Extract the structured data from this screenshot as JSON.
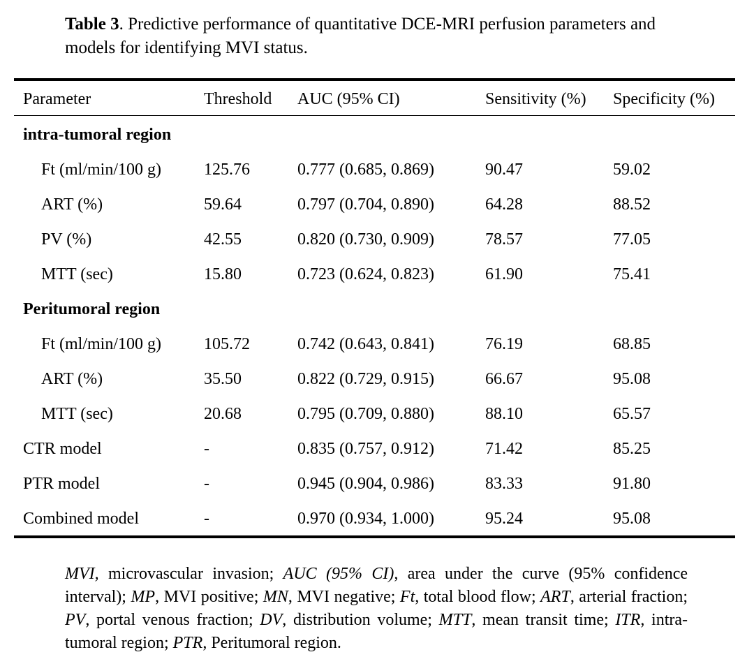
{
  "caption": {
    "label": "Table 3",
    "text": ". Predictive performance of quantitative DCE-MRI perfusion parameters and models for identifying MVI status."
  },
  "table": {
    "headers": [
      "Parameter",
      "Threshold",
      "AUC (95% CI)",
      "Sensitivity (%)",
      "Specificity (%)"
    ],
    "rows": [
      {
        "type": "section",
        "label": "intra-tumoral region"
      },
      {
        "type": "data",
        "indent": true,
        "cells": [
          "Ft (ml/min/100 g)",
          "125.76",
          "0.777 (0.685, 0.869)",
          "90.47",
          "59.02"
        ]
      },
      {
        "type": "data",
        "indent": true,
        "cells": [
          "ART (%)",
          "59.64",
          "0.797 (0.704, 0.890)",
          "64.28",
          "88.52"
        ]
      },
      {
        "type": "data",
        "indent": true,
        "cells": [
          "PV (%)",
          "42.55",
          "0.820 (0.730, 0.909)",
          "78.57",
          "77.05"
        ]
      },
      {
        "type": "data",
        "indent": true,
        "cells": [
          "MTT (sec)",
          "15.80",
          "0.723 (0.624, 0.823)",
          "61.90",
          "75.41"
        ]
      },
      {
        "type": "section",
        "label": "Peritumoral region"
      },
      {
        "type": "data",
        "indent": true,
        "cells": [
          "Ft (ml/min/100 g)",
          "105.72",
          "0.742 (0.643, 0.841)",
          "76.19",
          "68.85"
        ]
      },
      {
        "type": "data",
        "indent": true,
        "cells": [
          "ART (%)",
          "35.50",
          "0.822 (0.729, 0.915)",
          "66.67",
          "95.08"
        ]
      },
      {
        "type": "data",
        "indent": true,
        "cells": [
          "MTT (sec)",
          "20.68",
          "0.795 (0.709, 0.880)",
          "88.10",
          "65.57"
        ]
      },
      {
        "type": "data",
        "indent": false,
        "cells": [
          "CTR model",
          "-",
          "0.835 (0.757, 0.912)",
          "71.42",
          "85.25"
        ]
      },
      {
        "type": "data",
        "indent": false,
        "cells": [
          "PTR model",
          "-",
          "0.945 (0.904, 0.986)",
          "83.33",
          "91.80"
        ]
      },
      {
        "type": "data",
        "indent": false,
        "cells": [
          "Combined model",
          "-",
          "0.970 (0.934, 1.000)",
          "95.24",
          "95.08"
        ]
      }
    ]
  },
  "footnote": [
    {
      "term": "MVI,",
      "def": " microvascular invasion; "
    },
    {
      "term": "AUC (95% CI)",
      "def": ", area under the curve (95% confidence interval); "
    },
    {
      "term": "MP",
      "def": ", MVI positive; "
    },
    {
      "term": "MN",
      "def": ", MVI negative; "
    },
    {
      "term": "Ft",
      "def": ", total blood flow; "
    },
    {
      "term": "ART",
      "def": ", arterial fraction; "
    },
    {
      "term": "PV",
      "def": ", portal venous fraction; "
    },
    {
      "term": "DV",
      "def": ", distribution volume; "
    },
    {
      "term": "MTT",
      "def": ", mean transit time; "
    },
    {
      "term": "ITR",
      "def": ", intra-tumoral region; "
    },
    {
      "term": "PTR",
      "def": ", Peritumoral region."
    }
  ]
}
